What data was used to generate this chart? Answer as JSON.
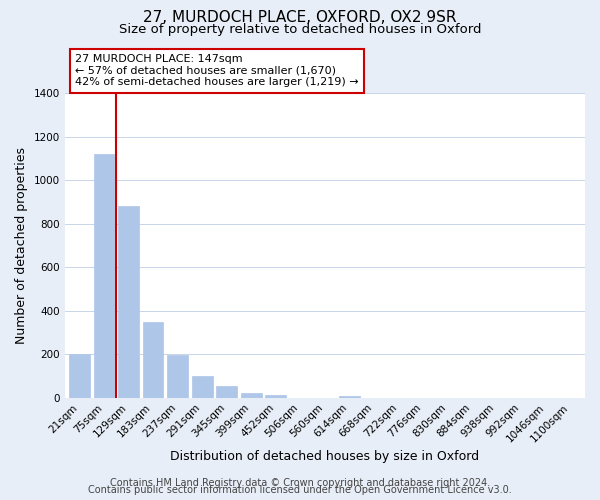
{
  "title": "27, MURDOCH PLACE, OXFORD, OX2 9SR",
  "subtitle": "Size of property relative to detached houses in Oxford",
  "xlabel": "Distribution of detached houses by size in Oxford",
  "ylabel": "Number of detached properties",
  "bar_labels": [
    "21sqm",
    "75sqm",
    "129sqm",
    "183sqm",
    "237sqm",
    "291sqm",
    "345sqm",
    "399sqm",
    "452sqm",
    "506sqm",
    "560sqm",
    "614sqm",
    "668sqm",
    "722sqm",
    "776sqm",
    "830sqm",
    "884sqm",
    "938sqm",
    "992sqm",
    "1046sqm",
    "1100sqm"
  ],
  "bar_heights": [
    200,
    1120,
    880,
    350,
    195,
    100,
    55,
    20,
    12,
    0,
    0,
    8,
    0,
    0,
    0,
    0,
    0,
    0,
    0,
    0,
    0
  ],
  "bar_color": "#aec6e8",
  "bar_edge_color": "#aec6e8",
  "vline_x": 1.5,
  "vline_color": "#cc0000",
  "annotation_title": "27 MURDOCH PLACE: 147sqm",
  "annotation_line1": "← 57% of detached houses are smaller (1,670)",
  "annotation_line2": "42% of semi-detached houses are larger (1,219) →",
  "ylim": [
    0,
    1400
  ],
  "yticks": [
    0,
    200,
    400,
    600,
    800,
    1000,
    1200,
    1400
  ],
  "footer1": "Contains HM Land Registry data © Crown copyright and database right 2024.",
  "footer2": "Contains public sector information licensed under the Open Government Licence v3.0.",
  "bg_color": "#e8eef7",
  "plot_bg_color": "#ffffff",
  "grid_color": "#c8d4e8",
  "title_fontsize": 11,
  "subtitle_fontsize": 9.5,
  "axis_label_fontsize": 9,
  "tick_fontsize": 7.5,
  "footer_fontsize": 7
}
